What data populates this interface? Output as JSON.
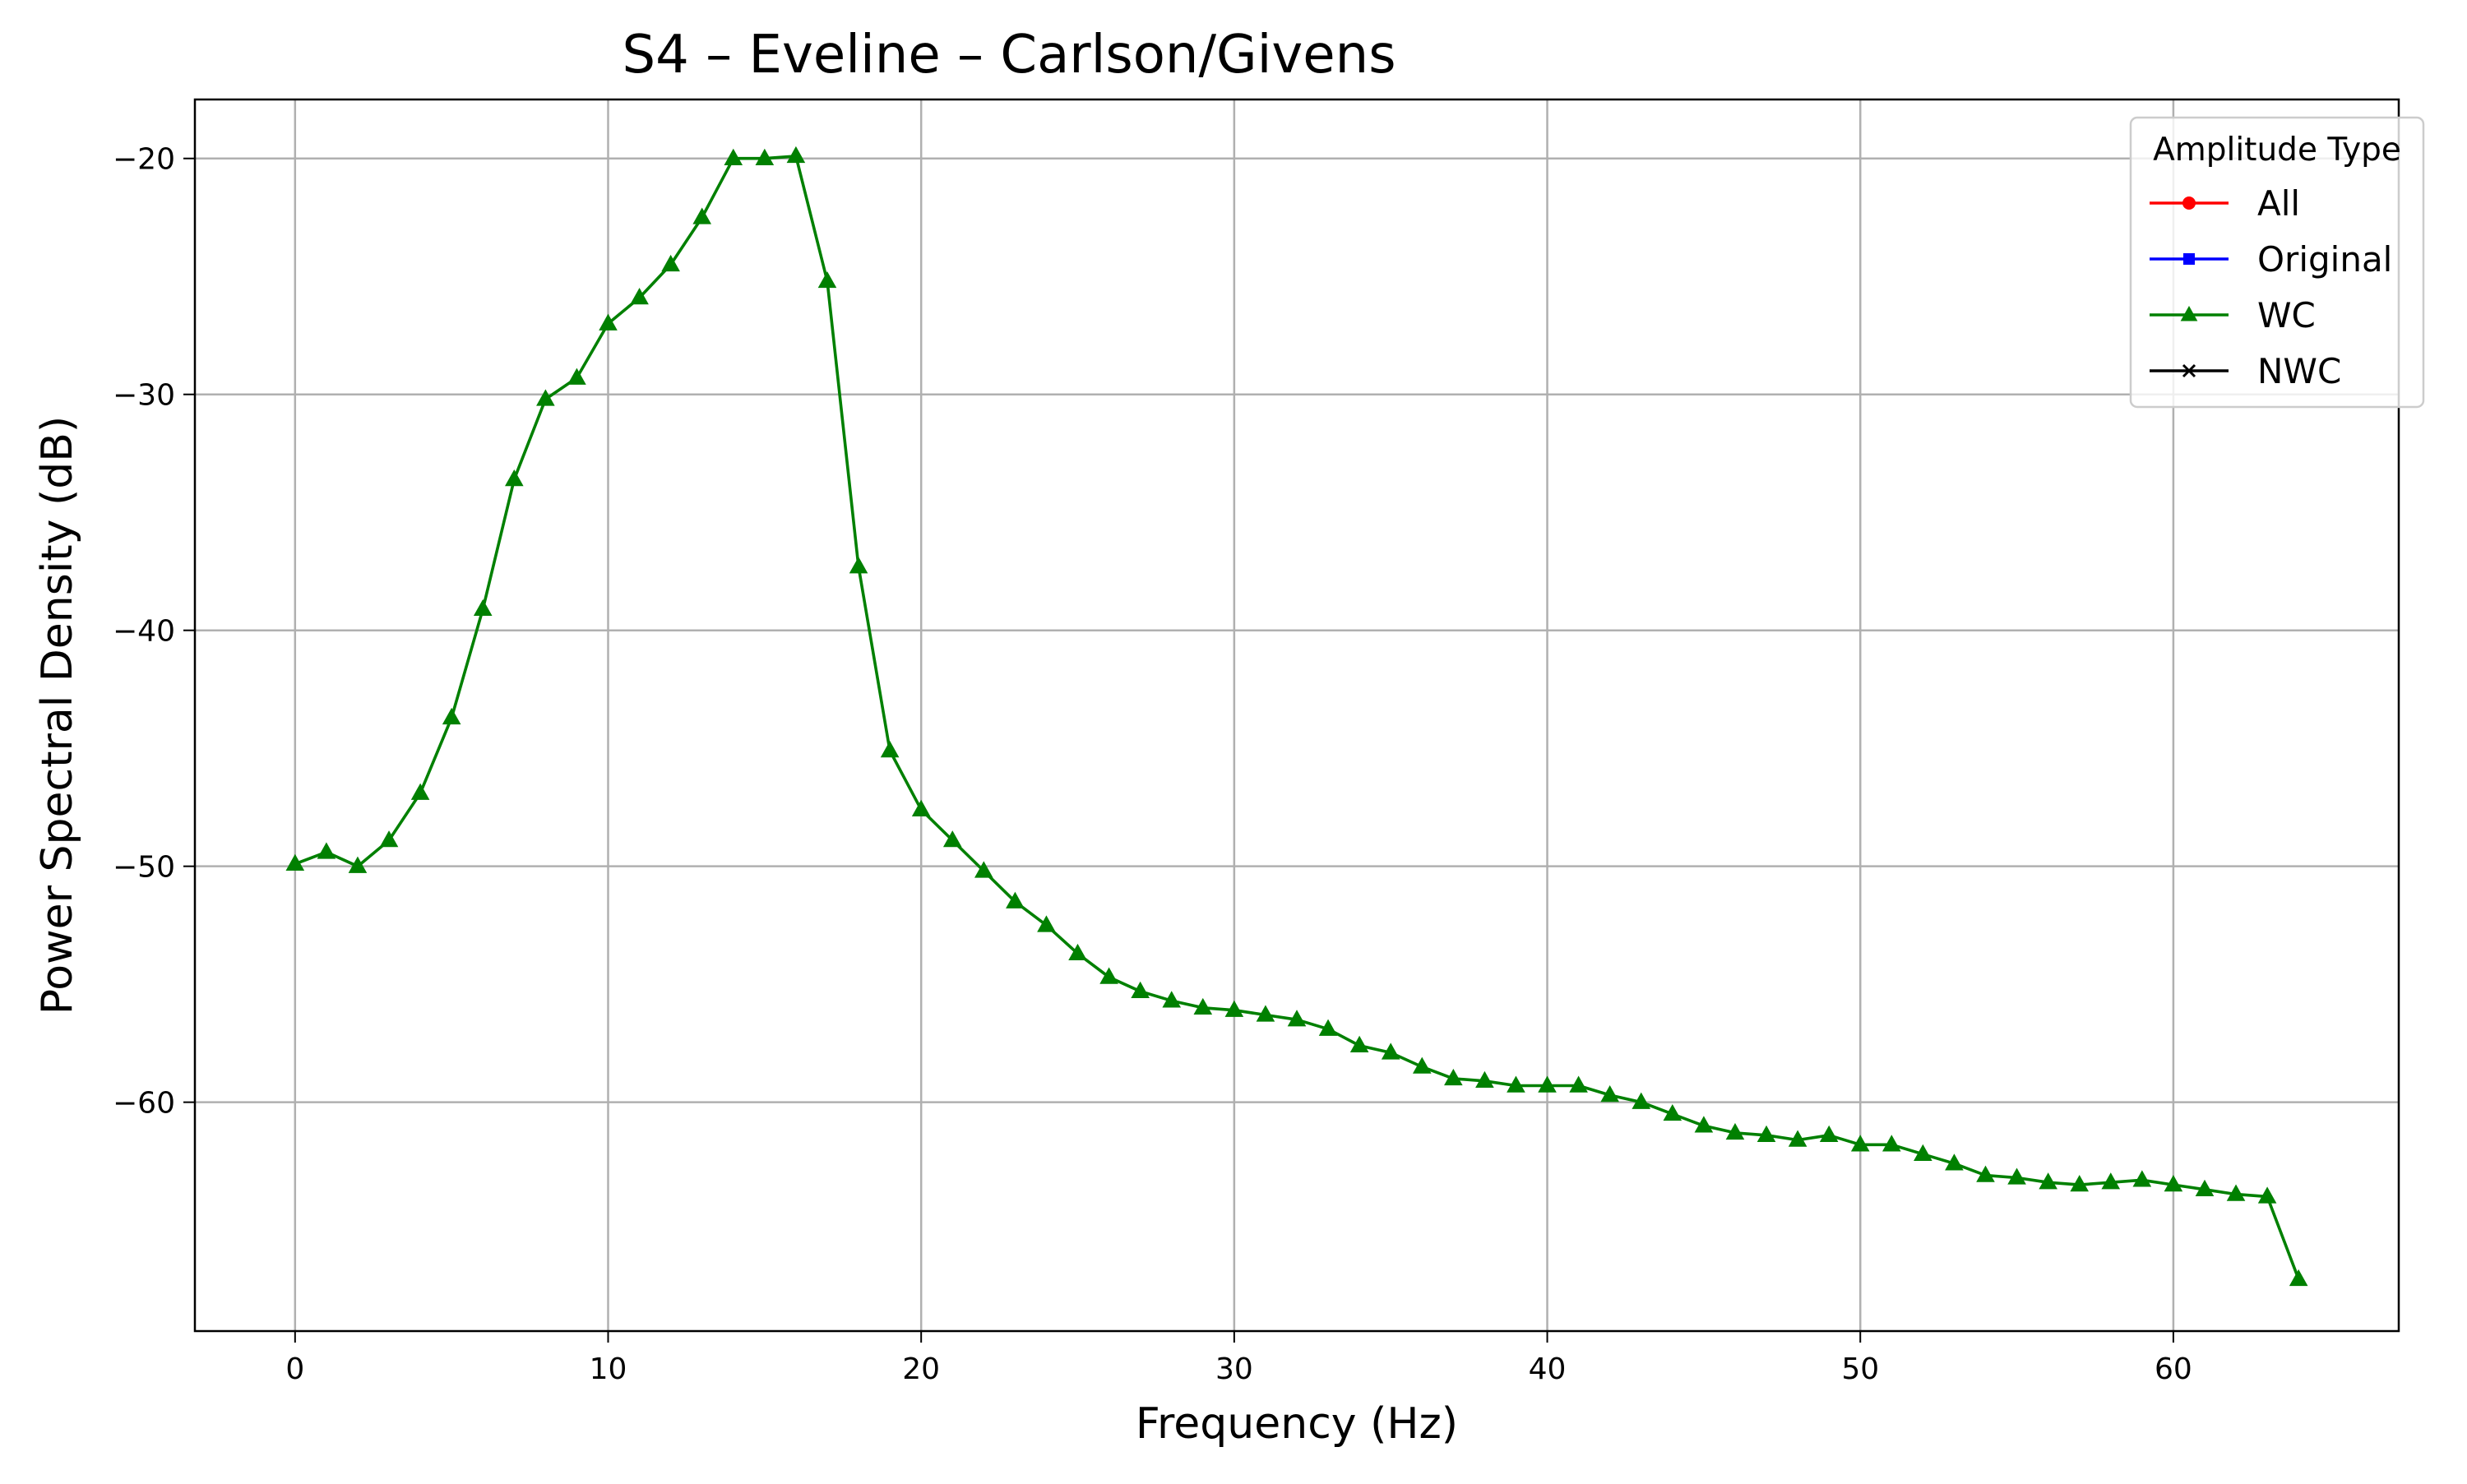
{
  "chart_data": {
    "type": "line",
    "title": "S4 – Eveline – Carlson/Givens",
    "xlabel": "Frequency (Hz)",
    "ylabel": "Power Spectral Density (dB)",
    "xlim": [
      -3.2,
      67.2
    ],
    "ylim": [
      -69.7,
      -17.5
    ],
    "xticks": [
      0,
      10,
      20,
      30,
      40,
      50,
      60
    ],
    "yticks": [
      -20,
      -30,
      -40,
      -50,
      -60
    ],
    "xtick_labels": [
      "0",
      "10",
      "20",
      "30",
      "40",
      "50",
      "60"
    ],
    "ytick_labels": [
      "−20",
      "−30",
      "−40",
      "−50",
      "−60"
    ],
    "grid": true,
    "legend": {
      "title": "Amplitude Type",
      "position": "top-right",
      "entries": [
        {
          "name": "All",
          "color": "#ff0000",
          "marker": "circle"
        },
        {
          "name": "Original",
          "color": "#0000ff",
          "marker": "square"
        },
        {
          "name": "WC",
          "color": "#008000",
          "marker": "triangle"
        },
        {
          "name": "NWC",
          "color": "#000000",
          "marker": "x"
        }
      ]
    },
    "series": [
      {
        "name": "WC",
        "color": "#008000",
        "marker": "triangle",
        "x": [
          0,
          1,
          2,
          3,
          4,
          5,
          6,
          7,
          8,
          9,
          10,
          11,
          12,
          13,
          14,
          15,
          16,
          17,
          18,
          19,
          20,
          21,
          22,
          23,
          24,
          25,
          26,
          27,
          28,
          29,
          30,
          31,
          32,
          33,
          34,
          35,
          36,
          37,
          38,
          39,
          40,
          41,
          42,
          43,
          44,
          45,
          46,
          47,
          48,
          49,
          50,
          51,
          52,
          53,
          54,
          55,
          56,
          57,
          58,
          59,
          60,
          61,
          62,
          63,
          64
        ],
        "y": [
          -49.9,
          -49.4,
          -50.0,
          -48.9,
          -46.9,
          -43.7,
          -39.1,
          -33.6,
          -30.2,
          -29.3,
          -27.0,
          -25.9,
          -24.5,
          -22.5,
          -20.0,
          -20.0,
          -19.9,
          -25.2,
          -37.3,
          -45.1,
          -47.6,
          -48.9,
          -50.2,
          -51.5,
          -52.5,
          -53.7,
          -54.7,
          -55.3,
          -55.7,
          -56.0,
          -56.1,
          -56.3,
          -56.5,
          -56.9,
          -57.6,
          -57.9,
          -58.5,
          -59.0,
          -59.1,
          -59.3,
          -59.3,
          -59.3,
          -59.7,
          -60.0,
          -60.5,
          -61.0,
          -61.3,
          -61.4,
          -61.6,
          -61.4,
          -61.8,
          -61.8,
          -62.2,
          -62.6,
          -63.1,
          -63.2,
          -63.4,
          -63.5,
          -63.4,
          -63.3,
          -63.5,
          -63.7,
          -63.9,
          -64.0,
          -67.5
        ]
      }
    ]
  }
}
